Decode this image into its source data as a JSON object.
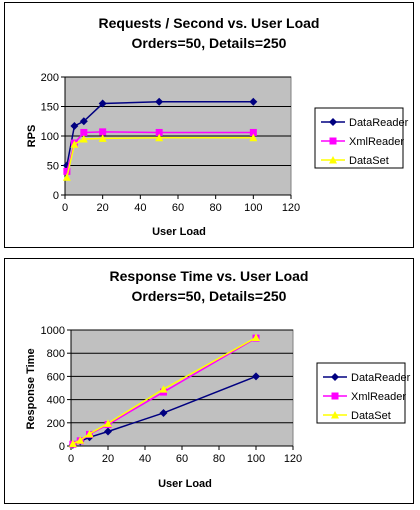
{
  "chart_data": [
    {
      "type": "line",
      "title": "Requests / Second  vs.  User Load",
      "subtitle": "Orders=50, Details=250",
      "xlabel": "User Load",
      "ylabel": "RPS",
      "xlim": [
        0,
        120
      ],
      "ylim": [
        0,
        200
      ],
      "xticks": [
        0,
        20,
        40,
        60,
        80,
        100,
        120
      ],
      "yticks": [
        0,
        50,
        100,
        150,
        200
      ],
      "grid": "horizontal",
      "plot_background": "#c0c0c0",
      "legend_position": "right",
      "x": [
        1,
        5,
        10,
        20,
        50,
        100
      ],
      "series": [
        {
          "name": "DataReader",
          "color": "#000080",
          "marker": "diamond",
          "values": [
            50,
            117,
            125,
            155,
            158,
            158
          ]
        },
        {
          "name": "XmlReader",
          "color": "#ff00ff",
          "marker": "square",
          "values": [
            40,
            88,
            106,
            107,
            106,
            106
          ]
        },
        {
          "name": "DataSet",
          "color": "#ffff00",
          "marker": "triangle",
          "values": [
            30,
            86,
            95,
            96,
            97,
            97
          ]
        }
      ]
    },
    {
      "type": "line",
      "title": "Response Time  vs.  User Load",
      "subtitle": "Orders=50, Details=250",
      "xlabel": "User Load",
      "ylabel": "Response Time",
      "xlim": [
        0,
        120
      ],
      "ylim": [
        0,
        1000
      ],
      "xticks": [
        0,
        20,
        40,
        60,
        80,
        100,
        120
      ],
      "yticks": [
        0,
        200,
        400,
        600,
        800,
        1000
      ],
      "grid": "horizontal",
      "plot_background": "#c0c0c0",
      "legend_position": "right",
      "x": [
        1,
        5,
        10,
        20,
        50,
        100
      ],
      "series": [
        {
          "name": "DataReader",
          "color": "#000080",
          "marker": "diamond",
          "values": [
            10,
            40,
            75,
            125,
            285,
            600
          ]
        },
        {
          "name": "XmlReader",
          "color": "#ff00ff",
          "marker": "square",
          "values": [
            15,
            45,
            100,
            185,
            465,
            930
          ]
        },
        {
          "name": "DataSet",
          "color": "#ffff00",
          "marker": "triangle",
          "values": [
            20,
            50,
            105,
            195,
            490,
            935
          ]
        }
      ]
    }
  ]
}
